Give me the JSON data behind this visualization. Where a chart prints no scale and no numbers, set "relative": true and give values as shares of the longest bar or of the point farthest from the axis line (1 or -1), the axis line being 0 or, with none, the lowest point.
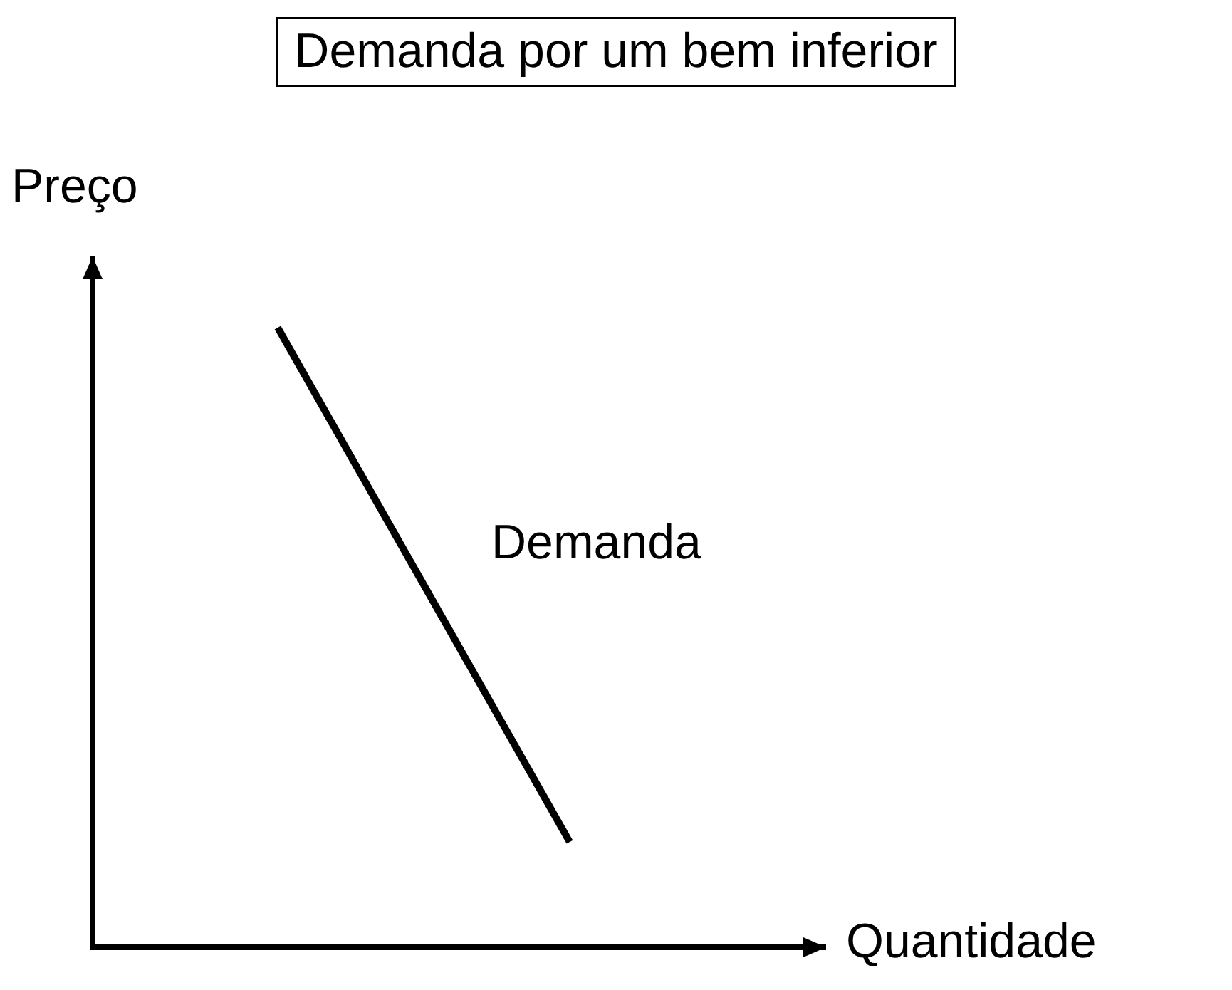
{
  "chart_data": {
    "type": "line",
    "title": "Demanda por um bem inferior",
    "xlabel": "Quantidade",
    "ylabel": "Preço",
    "relative": true,
    "categories": [
      null,
      null
    ],
    "series": [
      {
        "name": "Demanda",
        "color": "#000000",
        "values": [
          1,
          0.17
        ]
      }
    ],
    "marker": "none",
    "line_style": "solid"
  }
}
